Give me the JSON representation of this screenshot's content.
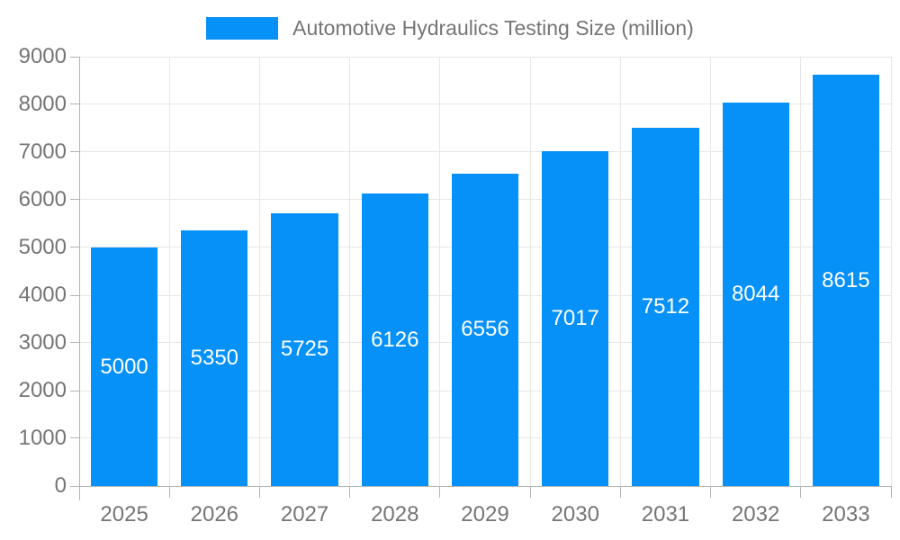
{
  "legend": {
    "label": "Automotive Hydraulics Testing Size (million)",
    "swatch_color": "#0591f8"
  },
  "chart_data": {
    "type": "bar",
    "title": "Automotive Hydraulics Testing Size (million)",
    "categories": [
      "2025",
      "2026",
      "2027",
      "2028",
      "2029",
      "2030",
      "2031",
      "2032",
      "2033"
    ],
    "values": [
      5000,
      5350,
      5725,
      6126,
      6556,
      7017,
      7512,
      8044,
      8615
    ],
    "xlabel": "",
    "ylabel": "",
    "ylim": [
      0,
      9000
    ],
    "ytick_step": 1000,
    "ytick_labels": [
      "0",
      "1000",
      "2000",
      "3000",
      "4000",
      "5000",
      "6000",
      "7000",
      "8000",
      "9000"
    ],
    "grid": true,
    "legend_position": "top-center",
    "colors": {
      "bar": "#0591f8",
      "bar_label": "#ffffff",
      "axis_text": "#757575",
      "gridline": "#e6e6e6",
      "axis_line": "#b3b3b3",
      "background": "#ffffff"
    }
  }
}
